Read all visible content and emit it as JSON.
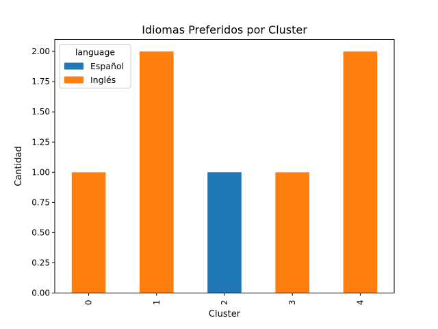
{
  "chart_data": {
    "type": "bar",
    "stacked": true,
    "title": "Idiomas Preferidos por Cluster",
    "xlabel": "Cluster",
    "ylabel": "Cantidad",
    "categories": [
      "0",
      "1",
      "2",
      "3",
      "4"
    ],
    "series": [
      {
        "name": "Español",
        "color": "#1f77b4",
        "values": [
          0,
          0,
          1,
          0,
          0
        ]
      },
      {
        "name": "Inglés",
        "color": "#ff7f0e",
        "values": [
          1,
          2,
          0,
          1,
          2
        ]
      }
    ],
    "ylim": [
      0,
      2.1
    ],
    "yticks": [
      "0.00",
      "0.25",
      "0.50",
      "0.75",
      "1.00",
      "1.25",
      "1.50",
      "1.75",
      "2.00"
    ],
    "legend": {
      "title": "language",
      "position": "top-left"
    },
    "grid": false
  }
}
